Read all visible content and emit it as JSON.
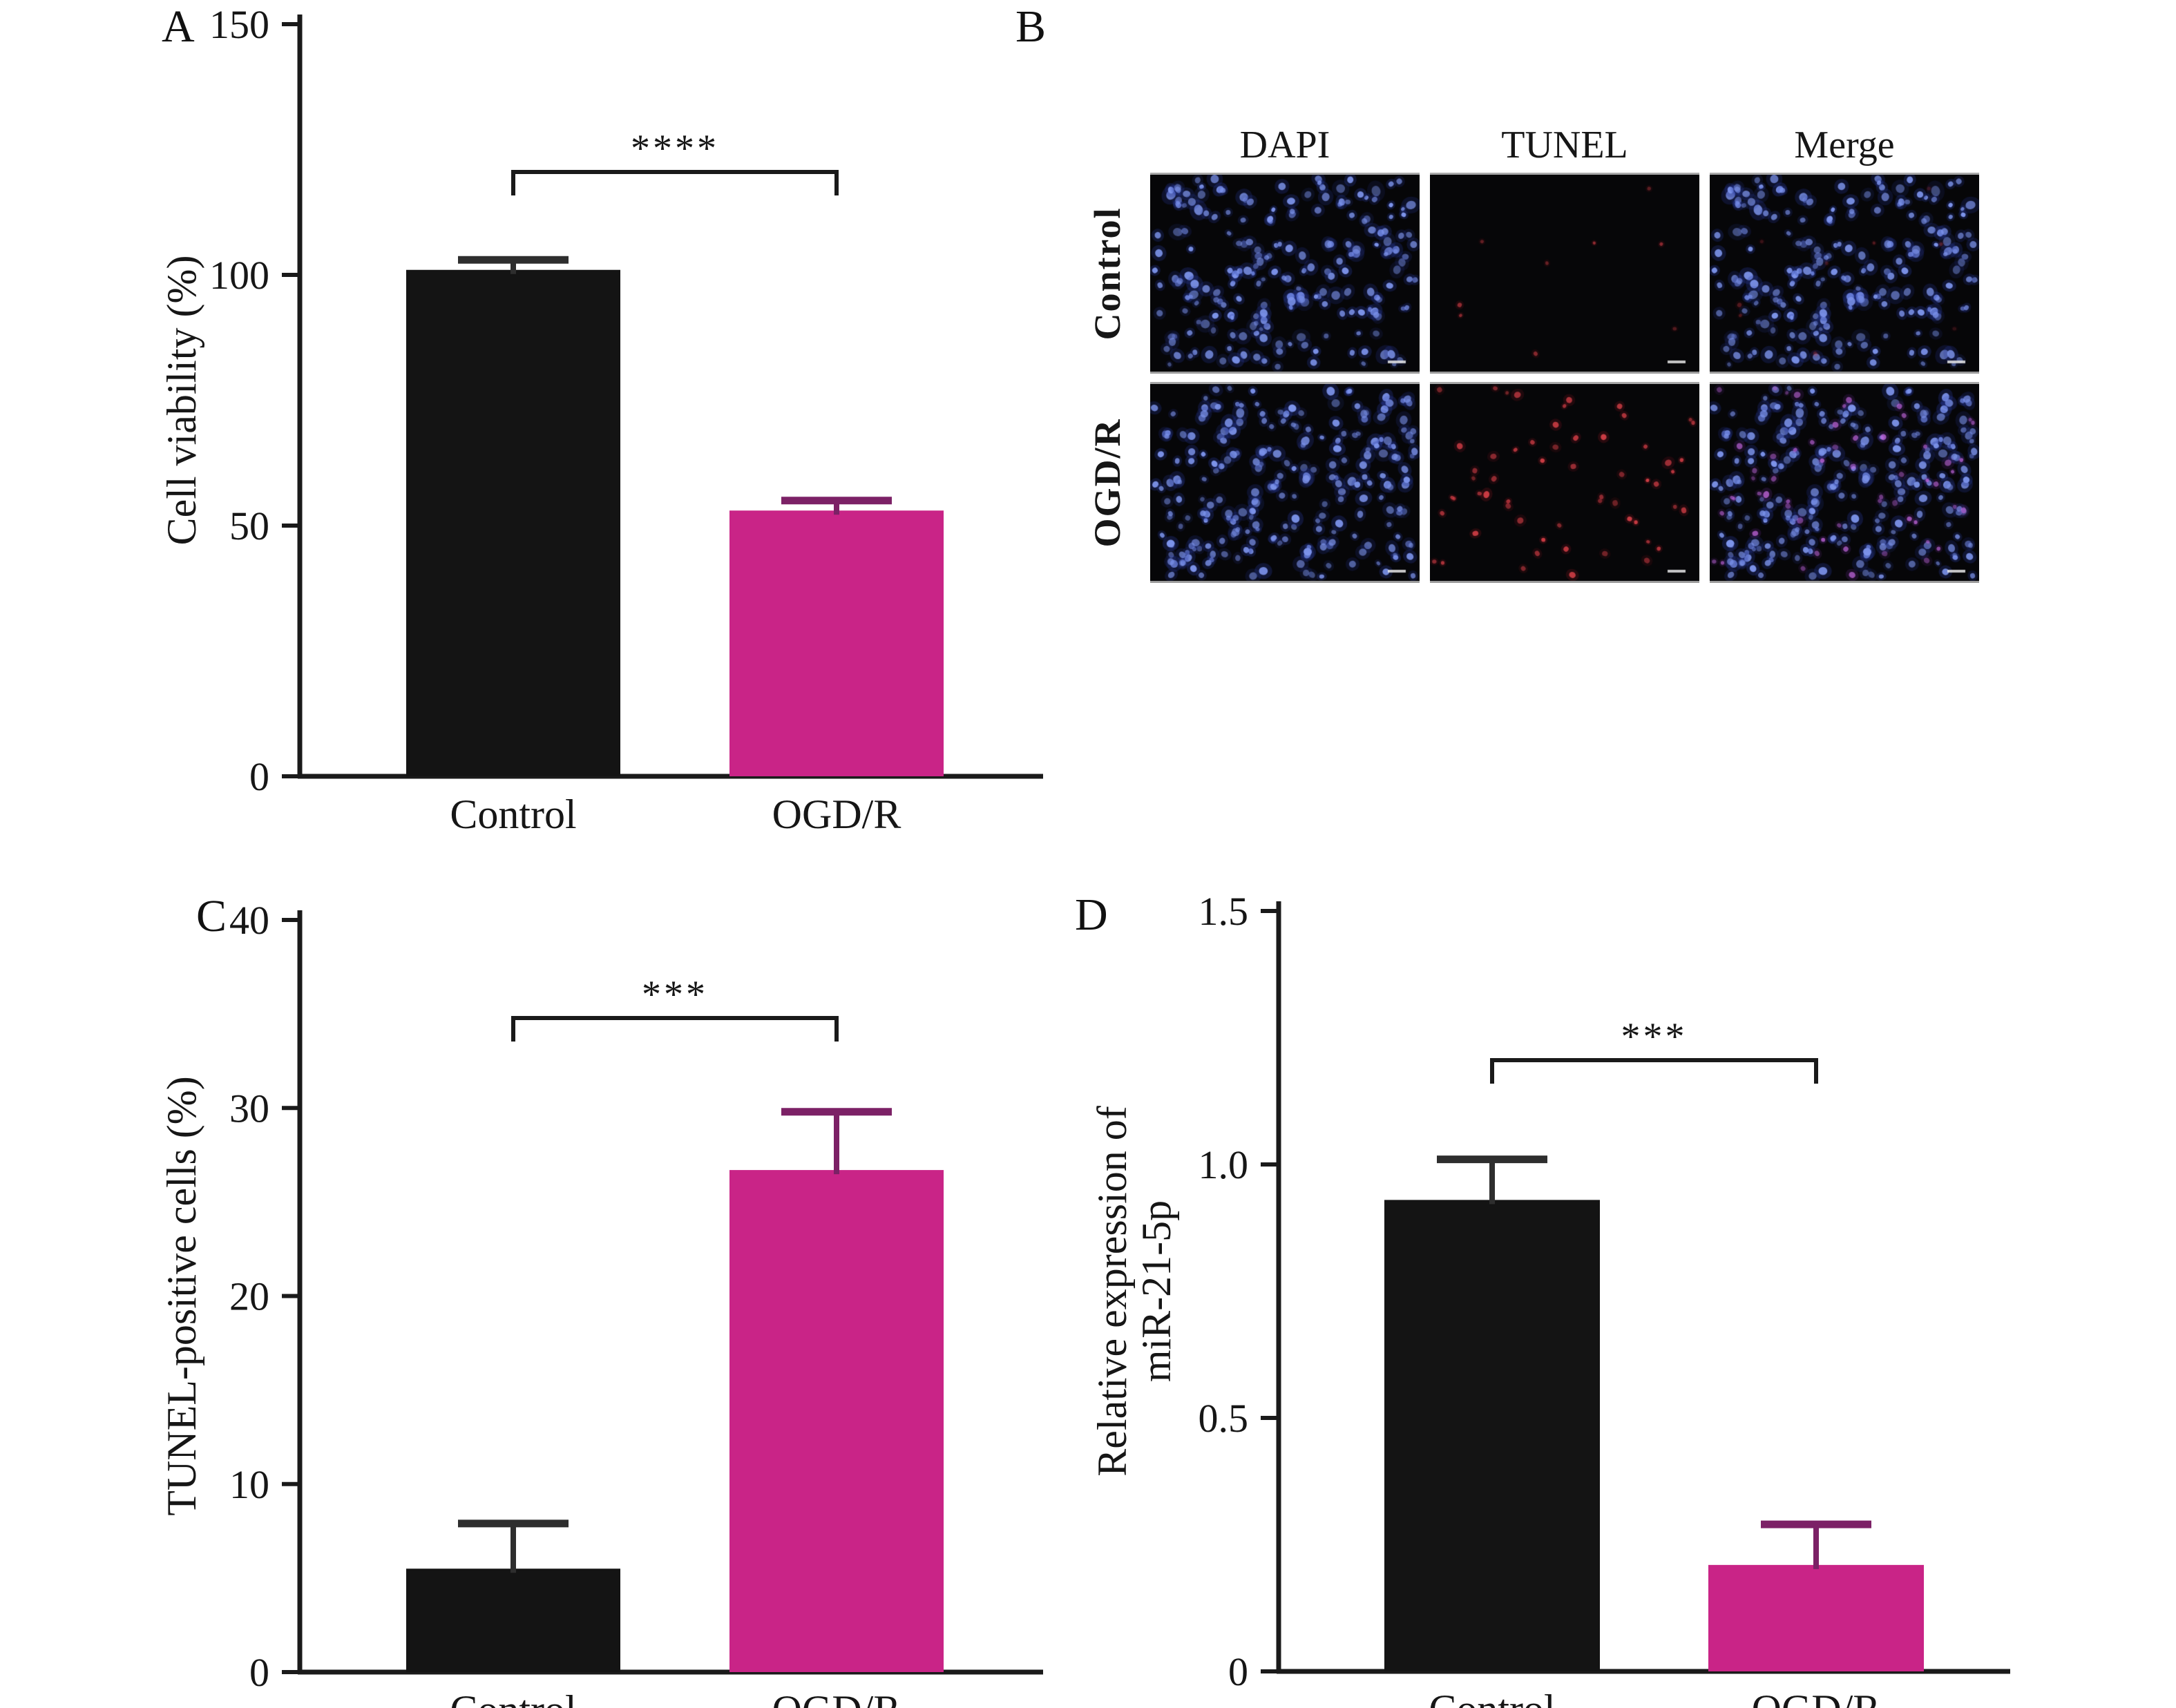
{
  "panels": {
    "a": {
      "label": "A"
    },
    "b": {
      "label": "B",
      "column_headers": [
        "DAPI",
        "TUNEL",
        "Merge"
      ],
      "row_labels": [
        "Control",
        "OGD/R"
      ],
      "microscopy": {
        "bg": "#060608",
        "images": [
          {
            "name": "control-dapi",
            "layers": [
              {
                "color": "blue",
                "count": 215,
                "seed": 11,
                "rmin": 3,
                "rmax": 6.5,
                "alpha": 1
              }
            ]
          },
          {
            "name": "control-tunel",
            "layers": [
              {
                "color": "red",
                "count": 9,
                "seed": 21,
                "rmin": 2,
                "rmax": 3.5,
                "alpha": 0.65
              }
            ]
          },
          {
            "name": "control-merge",
            "layers": [
              {
                "color": "blue",
                "count": 215,
                "seed": 11,
                "rmin": 3,
                "rmax": 6.5,
                "alpha": 1
              },
              {
                "color": "red",
                "count": 9,
                "seed": 21,
                "rmin": 2,
                "rmax": 3.5,
                "alpha": 0.35
              }
            ]
          },
          {
            "name": "ogdr-dapi",
            "layers": [
              {
                "color": "blue",
                "count": 240,
                "seed": 31,
                "rmin": 3,
                "rmax": 6,
                "alpha": 1
              }
            ]
          },
          {
            "name": "ogdr-tunel",
            "layers": [
              {
                "color": "red",
                "count": 58,
                "seed": 41,
                "rmin": 2.5,
                "rmax": 4.5,
                "alpha": 0.95
              }
            ]
          },
          {
            "name": "ogdr-merge",
            "layers": [
              {
                "color": "blue",
                "count": 240,
                "seed": 31,
                "rmin": 3,
                "rmax": 6,
                "alpha": 1
              },
              {
                "color": "violet",
                "count": 58,
                "seed": 41,
                "rmin": 2.5,
                "rmax": 4.5,
                "alpha": 0.8
              }
            ]
          }
        ]
      }
    },
    "c": {
      "label": "C"
    },
    "d": {
      "label": "D"
    }
  },
  "chart_data": [
    {
      "id": "a",
      "type": "bar",
      "title": "",
      "xlabel": "",
      "ylabel": "Cell viability (%)",
      "ylabel_lines": [
        "Cell viability (%)"
      ],
      "categories": [
        "Control",
        "OGD/R"
      ],
      "values": [
        101,
        53
      ],
      "errors": [
        2,
        2
      ],
      "ylim": [
        0,
        150
      ],
      "yticks": [
        0,
        50,
        100,
        150
      ],
      "ytick_labels": [
        "0",
        "50",
        "100",
        "150"
      ],
      "significance": "****",
      "bar_colors": [
        "black",
        "magenta"
      ],
      "grid": false,
      "legend": null
    },
    {
      "id": "c",
      "type": "bar",
      "title": "",
      "xlabel": "",
      "ylabel": "TUNEL-positive cells (%)",
      "ylabel_lines": [
        "TUNEL-positive cells (%)"
      ],
      "categories": [
        "Control",
        "OGD/R"
      ],
      "values": [
        5.5,
        26.7
      ],
      "errors": [
        2.4,
        3.1
      ],
      "ylim": [
        0,
        40
      ],
      "yticks": [
        0,
        10,
        20,
        30,
        40
      ],
      "ytick_labels": [
        "0",
        "10",
        "20",
        "30",
        "40"
      ],
      "significance": "***",
      "bar_colors": [
        "black",
        "magenta"
      ],
      "grid": false,
      "legend": null
    },
    {
      "id": "d",
      "type": "bar",
      "title": "",
      "xlabel": "",
      "ylabel": "Relative expression of miR-21-5p",
      "ylabel_lines": [
        "Relative expression of",
        "miR-21-5p"
      ],
      "categories": [
        "Control",
        "OGD/R"
      ],
      "values": [
        0.93,
        0.21
      ],
      "errors": [
        0.08,
        0.08
      ],
      "ylim": [
        0,
        1.5
      ],
      "yticks": [
        0,
        0.5,
        1.0,
        1.5
      ],
      "ytick_labels": [
        "0",
        "0.5",
        "1.0",
        "1.5"
      ],
      "significance": "***",
      "bar_colors": [
        "black",
        "magenta"
      ],
      "grid": false,
      "legend": null
    }
  ],
  "colors": {
    "axis": "#1a1a1a",
    "bar_black": "#141414",
    "bar_magenta": "#c92487",
    "err_black": "#2e2e2e",
    "err_magenta": "#7c2166",
    "micro_bg": "#060608",
    "blue_core": "#7c93ea",
    "blue_glow": "#2b3da6",
    "red_core": "#d84048",
    "red_glow": "#801620",
    "violet_core": "#c468e0",
    "violet_glow": "#6e2f9a",
    "scalebar": "#e8e8e8"
  }
}
